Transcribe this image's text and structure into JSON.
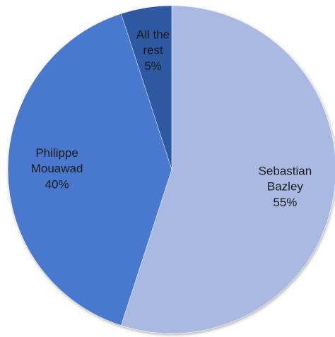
{
  "chart_data": {
    "type": "pie",
    "categories": [
      "Sebastian Bazley",
      "Philippe Mouawad",
      "All the rest"
    ],
    "values": [
      55,
      40,
      5
    ],
    "value_labels": [
      "55%",
      "40%",
      "5%"
    ],
    "colors": [
      "#a9b9e1",
      "#4a78cf",
      "#2f5aa3"
    ]
  }
}
